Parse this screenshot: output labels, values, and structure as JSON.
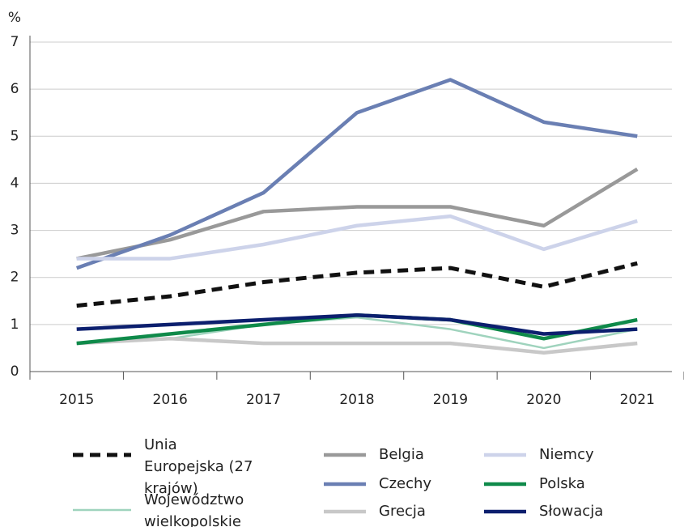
{
  "chart_data": {
    "type": "line",
    "ylabel": "%",
    "categories": [
      "2015",
      "2016",
      "2017",
      "2018",
      "2019",
      "2020",
      "2021"
    ],
    "ylim": [
      0,
      7
    ],
    "yticks": [
      0,
      1,
      2,
      3,
      4,
      5,
      6,
      7
    ],
    "grid": true,
    "series": [
      {
        "name": "Unia Europejska (27 krajów)",
        "color": "#111111",
        "style": "dashed",
        "values": [
          1.4,
          1.6,
          1.9,
          2.1,
          2.2,
          1.8,
          2.3
        ]
      },
      {
        "name": "Województwo wielkopolskie",
        "color": "#9fd3bd",
        "style": "thin",
        "values": [
          0.6,
          0.7,
          1.0,
          1.15,
          0.9,
          0.5,
          0.9
        ]
      },
      {
        "name": "Belgia",
        "color": "#999999",
        "style": "solid",
        "values": [
          2.4,
          2.8,
          3.4,
          3.5,
          3.5,
          3.1,
          4.3
        ]
      },
      {
        "name": "Czechy",
        "color": "#6a7fb3",
        "style": "solid",
        "values": [
          2.2,
          2.9,
          3.8,
          5.5,
          6.2,
          5.3,
          5.0
        ]
      },
      {
        "name": "Grecja",
        "color": "#c8c8c8",
        "style": "solid",
        "values": [
          0.6,
          0.7,
          0.6,
          0.6,
          0.6,
          0.4,
          0.6
        ]
      },
      {
        "name": "Niemcy",
        "color": "#cdd3ea",
        "style": "solid",
        "values": [
          2.4,
          2.4,
          2.7,
          3.1,
          3.3,
          2.6,
          3.2
        ]
      },
      {
        "name": "Polska",
        "color": "#0f8a4a",
        "style": "solid",
        "values": [
          0.6,
          0.8,
          1.0,
          1.2,
          1.1,
          0.7,
          1.1
        ]
      },
      {
        "name": "Słowacja",
        "color": "#0c1f6e",
        "style": "solid",
        "values": [
          0.9,
          1.0,
          1.1,
          1.2,
          1.1,
          0.8,
          0.9
        ]
      }
    ]
  }
}
